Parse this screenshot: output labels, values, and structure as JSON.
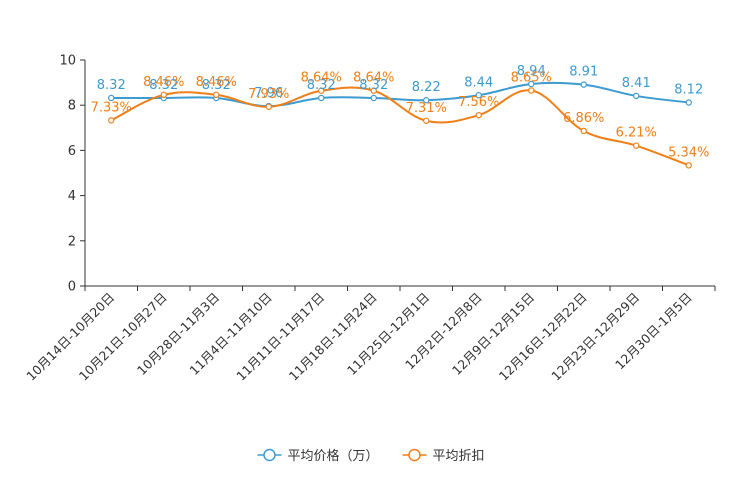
{
  "chart_data": {
    "type": "line",
    "title": "",
    "xlabel": "",
    "ylabel": "",
    "ylim": [
      0,
      10
    ],
    "yticks": [
      0,
      2,
      4,
      6,
      8,
      10
    ],
    "grid": false,
    "legend_position": "bottom",
    "categories": [
      "10月14日-10月20日",
      "10月21日-10月27日",
      "10月28日-11月3日",
      "11月4日-11月10日",
      "11月11日-11月17日",
      "11月18日-11月24日",
      "11月25日-12月1日",
      "12月2日-12月8日",
      "12月9日-12月15日",
      "12月16日-12月22日",
      "12月23日-12月29日",
      "12月30日-1月5日"
    ],
    "series": [
      {
        "name": "平均价格（万）",
        "color": "#3d9bd1",
        "values": [
          8.32,
          8.32,
          8.32,
          7.96,
          8.32,
          8.32,
          8.22,
          8.44,
          8.94,
          8.91,
          8.41,
          8.12
        ],
        "labels": [
          "8.32",
          "8.32",
          "8.32",
          "7.96",
          "8.32",
          "8.32",
          "8.22",
          "8.44",
          "8.94",
          "8.91",
          "8.41",
          "8.12"
        ]
      },
      {
        "name": "平均折扣",
        "color": "#f07f17",
        "values": [
          7.33,
          8.46,
          8.46,
          7.93,
          8.64,
          8.64,
          7.31,
          7.56,
          8.65,
          6.86,
          6.21,
          5.34
        ],
        "labels": [
          "7.33%",
          "8.46%",
          "8.46%",
          "7.93%",
          "8.64%",
          "8.64%",
          "7.31%",
          "7.56%",
          "8.65%",
          "6.86%",
          "6.21%",
          "5.34%"
        ]
      }
    ]
  }
}
